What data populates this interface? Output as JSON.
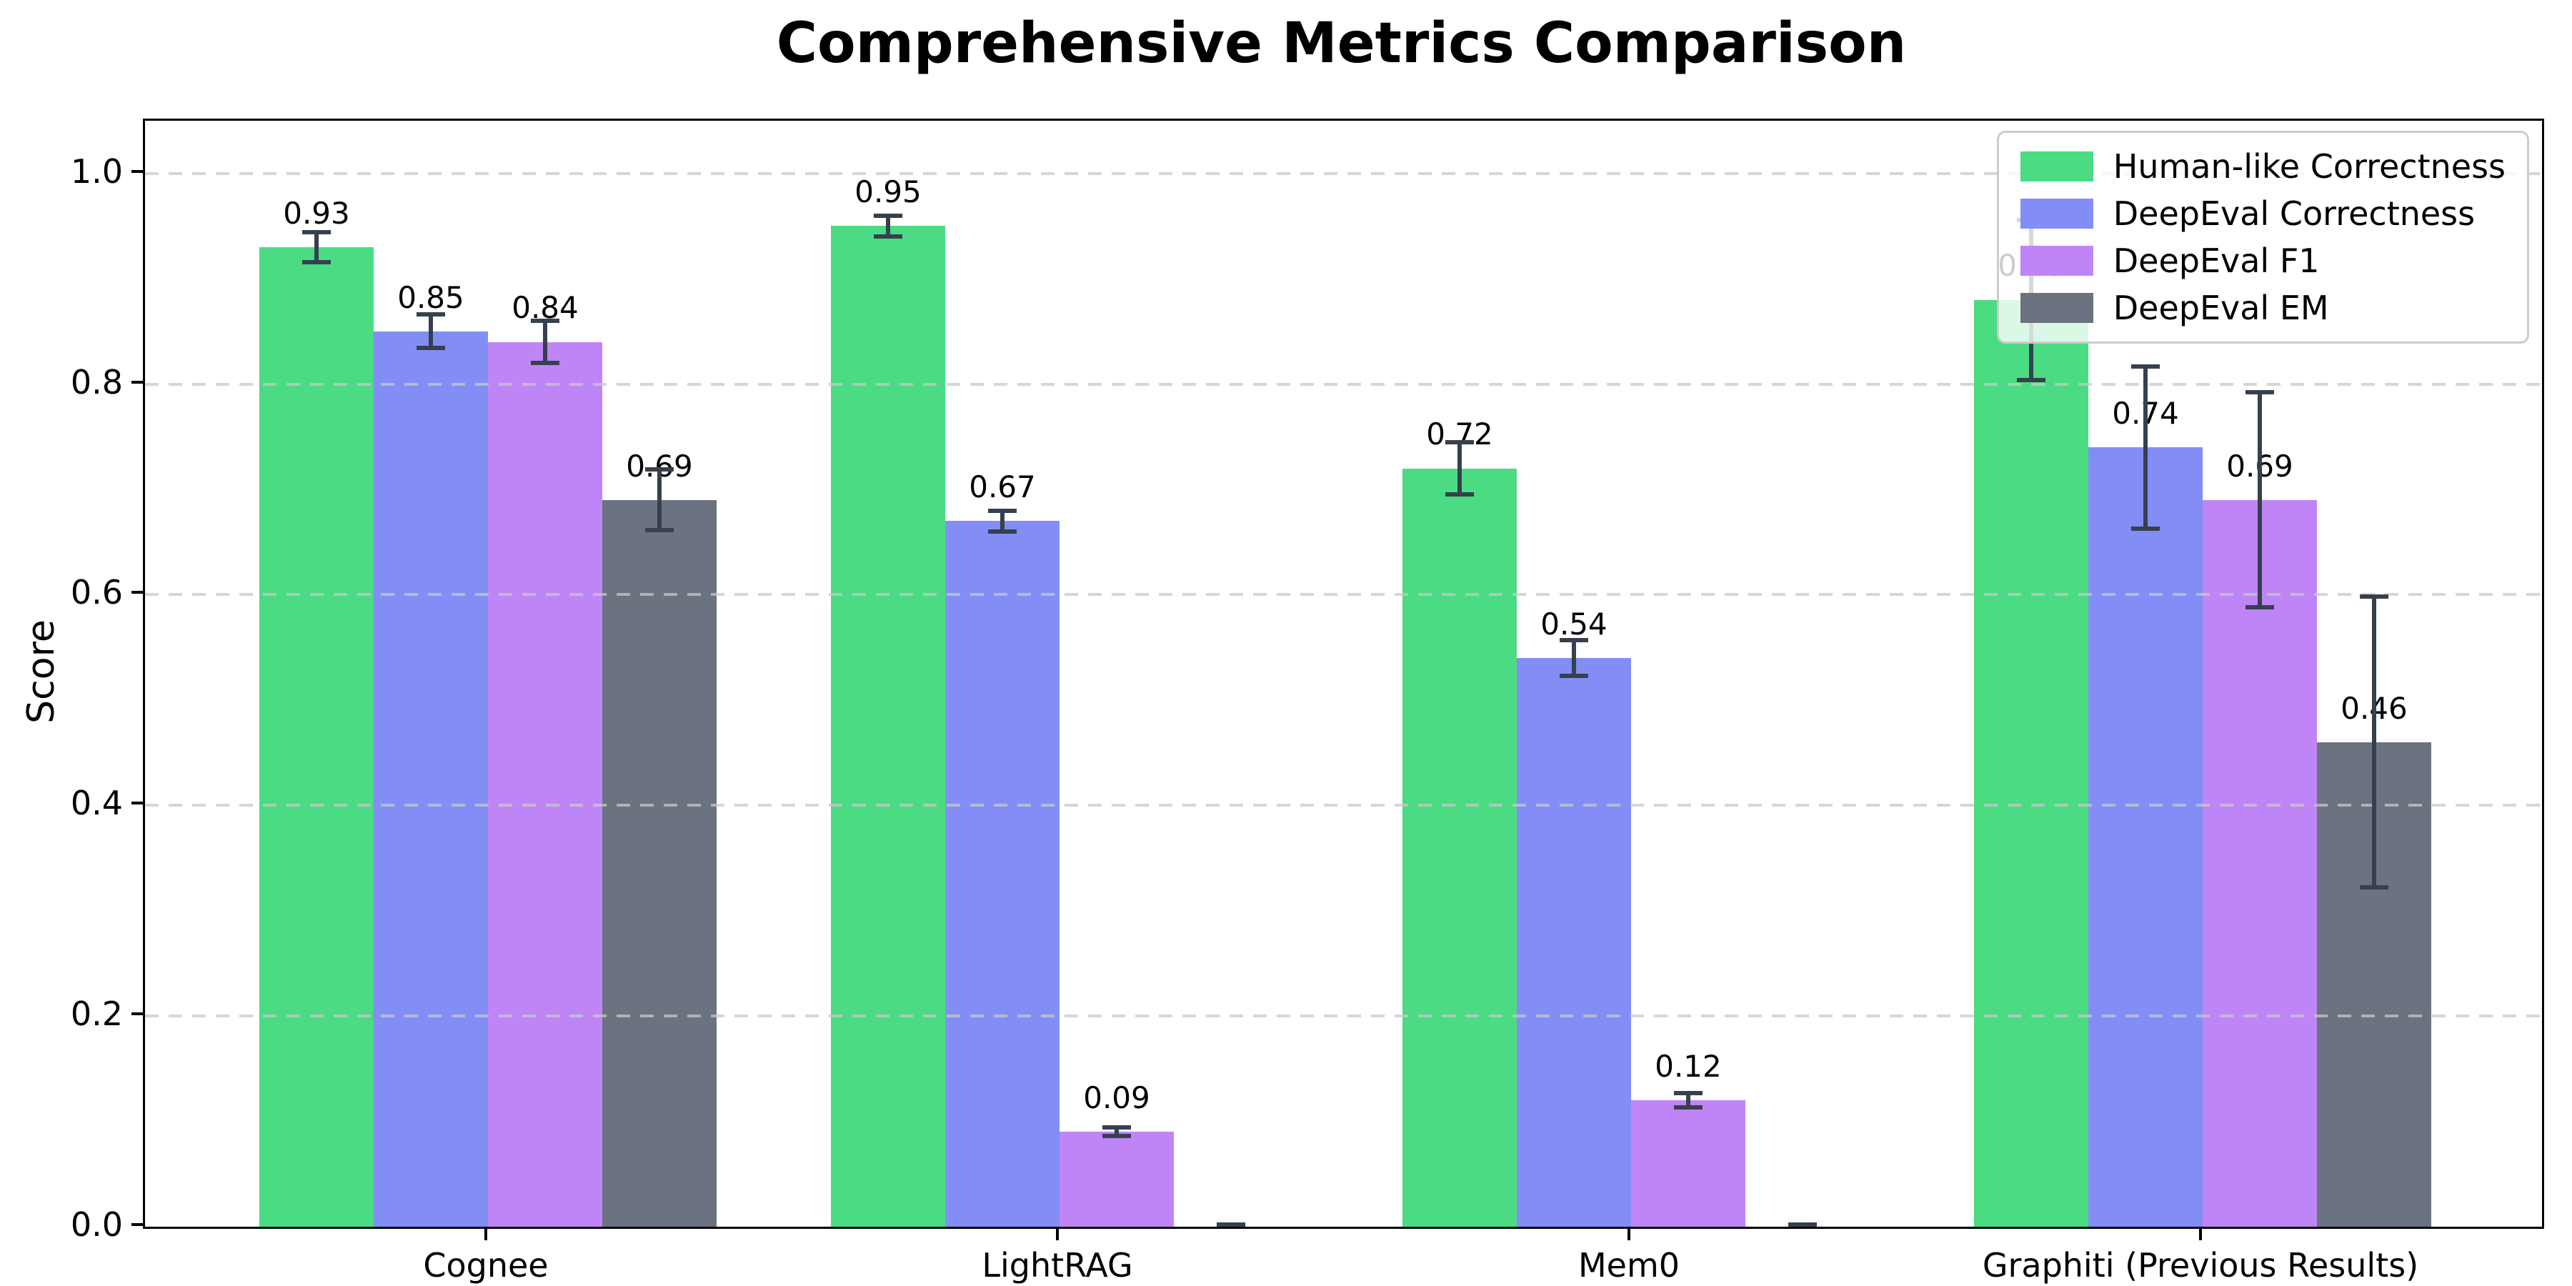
{
  "page": {
    "background_color": "#ffffff"
  },
  "chart_data": {
    "type": "bar",
    "title": "Comprehensive Metrics Comparison",
    "xlabel": "",
    "ylabel": "Score",
    "categories": [
      "Cognee",
      "LightRAG",
      "Mem0",
      "Graphiti (Previous Results)"
    ],
    "series": [
      {
        "name": "Human-like Correctness",
        "color": "#4bdb83",
        "values": [
          0.93,
          0.95,
          0.72,
          0.88
        ],
        "errors": [
          0.016,
          0.012,
          0.027,
          0.078
        ],
        "value_labels": [
          "0.93",
          "0.95",
          "0.72",
          "0.88"
        ]
      },
      {
        "name": "DeepEval Correctness",
        "color": "#828ef5",
        "values": [
          0.85,
          0.67,
          0.54,
          0.74
        ],
        "errors": [
          0.018,
          0.012,
          0.019,
          0.079
        ],
        "value_labels": [
          "0.85",
          "0.67",
          "0.54",
          "0.74"
        ]
      },
      {
        "name": "DeepEval F1",
        "color": "#bf85f6",
        "values": [
          0.84,
          0.09,
          0.12,
          0.69
        ],
        "errors": [
          0.022,
          0.006,
          0.009,
          0.104
        ],
        "value_labels": [
          "0.84",
          "0.09",
          "0.12",
          "0.69"
        ]
      },
      {
        "name": "DeepEval EM",
        "color": "#6b7280",
        "values": [
          0.69,
          0.0,
          0.0,
          0.46
        ],
        "errors": [
          0.031,
          0.004,
          0.004,
          0.14
        ],
        "value_labels": [
          "0.69",
          "",
          "",
          "0.46"
        ]
      }
    ],
    "legend": {
      "position": "upper right",
      "entries": [
        "Human-like Correctness",
        "DeepEval Correctness",
        "DeepEval F1",
        "DeepEval EM"
      ]
    },
    "ylim": [
      0,
      1.05
    ],
    "yticks": [
      0.0,
      0.2,
      0.4,
      0.6,
      0.8,
      1.0
    ],
    "grid": {
      "axis": "y",
      "style": "dashed",
      "color": "#c8c8c8"
    },
    "error_bar_color": "#36404e"
  }
}
